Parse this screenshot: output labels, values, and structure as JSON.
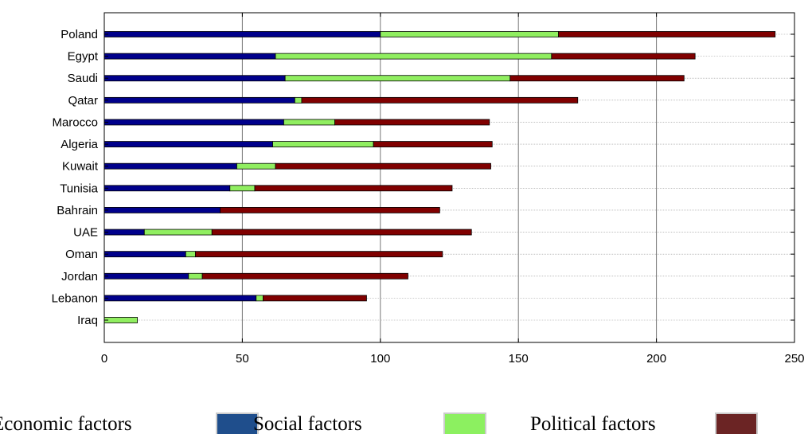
{
  "chart_data": {
    "type": "bar",
    "orientation": "horizontal",
    "stacked": true,
    "categories": [
      "Poland",
      "Egypt",
      "Saudi",
      "Qatar",
      "Marocco",
      "Algeria",
      "Kuwait",
      "Tunisia",
      "Bahrain",
      "UAE",
      "Oman",
      "Jordan",
      "Lebanon",
      "Iraq"
    ],
    "series": [
      {
        "name": "Economic factors",
        "color": "#00008b",
        "values": [
          100,
          62,
          65.5,
          69,
          65,
          61,
          48,
          45.5,
          42,
          14.5,
          29.5,
          30.5,
          55,
          0
        ]
      },
      {
        "name": "Social factors",
        "color": "#90ee60",
        "values": [
          64.5,
          100,
          81.5,
          2.5,
          18.5,
          36.5,
          14,
          9,
          0,
          24.5,
          3.5,
          5,
          2.5,
          12
        ]
      },
      {
        "name": "Political factors",
        "color": "#800000",
        "values": [
          78.5,
          52,
          63,
          100,
          56,
          43,
          78,
          71.5,
          79.5,
          94,
          89.5,
          74.5,
          37.5,
          0
        ]
      }
    ],
    "xlim": [
      0,
      250
    ],
    "xticks": [
      "0",
      "50",
      "100",
      "150",
      "200",
      "250"
    ],
    "title": "",
    "xlabel": "",
    "ylabel": "",
    "grid": true,
    "legend": {
      "position": "bottom",
      "entries": [
        {
          "label": "Economic factors",
          "swatch_color": "#1f4e8c"
        },
        {
          "label": "Social factors",
          "swatch_color": "#8cf060"
        },
        {
          "label": "Political factors",
          "swatch_color": "#6b2424"
        }
      ]
    }
  }
}
